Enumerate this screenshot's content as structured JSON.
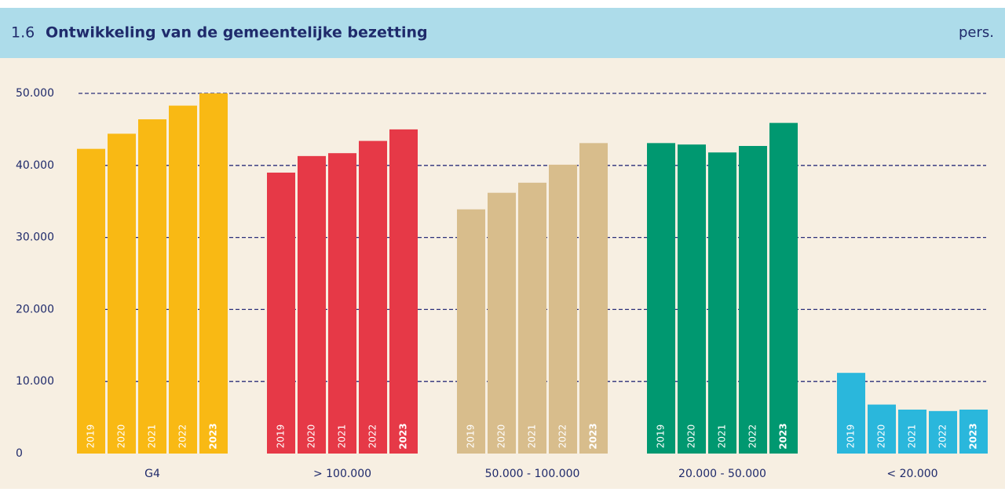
{
  "chart_data": {
    "type": "bar",
    "title_number": "1.6",
    "title": "Ontwikkeling van de gemeentelijke bezetting",
    "unit": "pers.",
    "categories": [
      "G4",
      "> 100.000",
      "50.000 - 100.000",
      "20.000 - 50.000",
      "< 20.000"
    ],
    "colors": [
      "#f9b914",
      "#e63947",
      "#d8bd8c",
      "#009870",
      "#2ab7dc"
    ],
    "series": [
      {
        "name": "2019",
        "values": [
          42300,
          39000,
          33900,
          43100,
          11200
        ]
      },
      {
        "name": "2020",
        "values": [
          44400,
          41300,
          36200,
          42900,
          6800
        ]
      },
      {
        "name": "2021",
        "values": [
          46400,
          41700,
          37600,
          41800,
          6100
        ]
      },
      {
        "name": "2022",
        "values": [
          48300,
          43400,
          40100,
          42700,
          5900
        ]
      },
      {
        "name": "2023",
        "values": [
          50000,
          45000,
          43100,
          45900,
          6100
        ]
      }
    ],
    "ylim": [
      0,
      50000
    ],
    "yticks": [
      {
        "value": 0,
        "label": "0"
      },
      {
        "value": 10000,
        "label": "10.000"
      },
      {
        "value": 20000,
        "label": "20.000"
      },
      {
        "value": 30000,
        "label": "30.000"
      },
      {
        "value": 40000,
        "label": "40.000"
      },
      {
        "value": 50000,
        "label": "50.000"
      }
    ],
    "grid": true
  }
}
